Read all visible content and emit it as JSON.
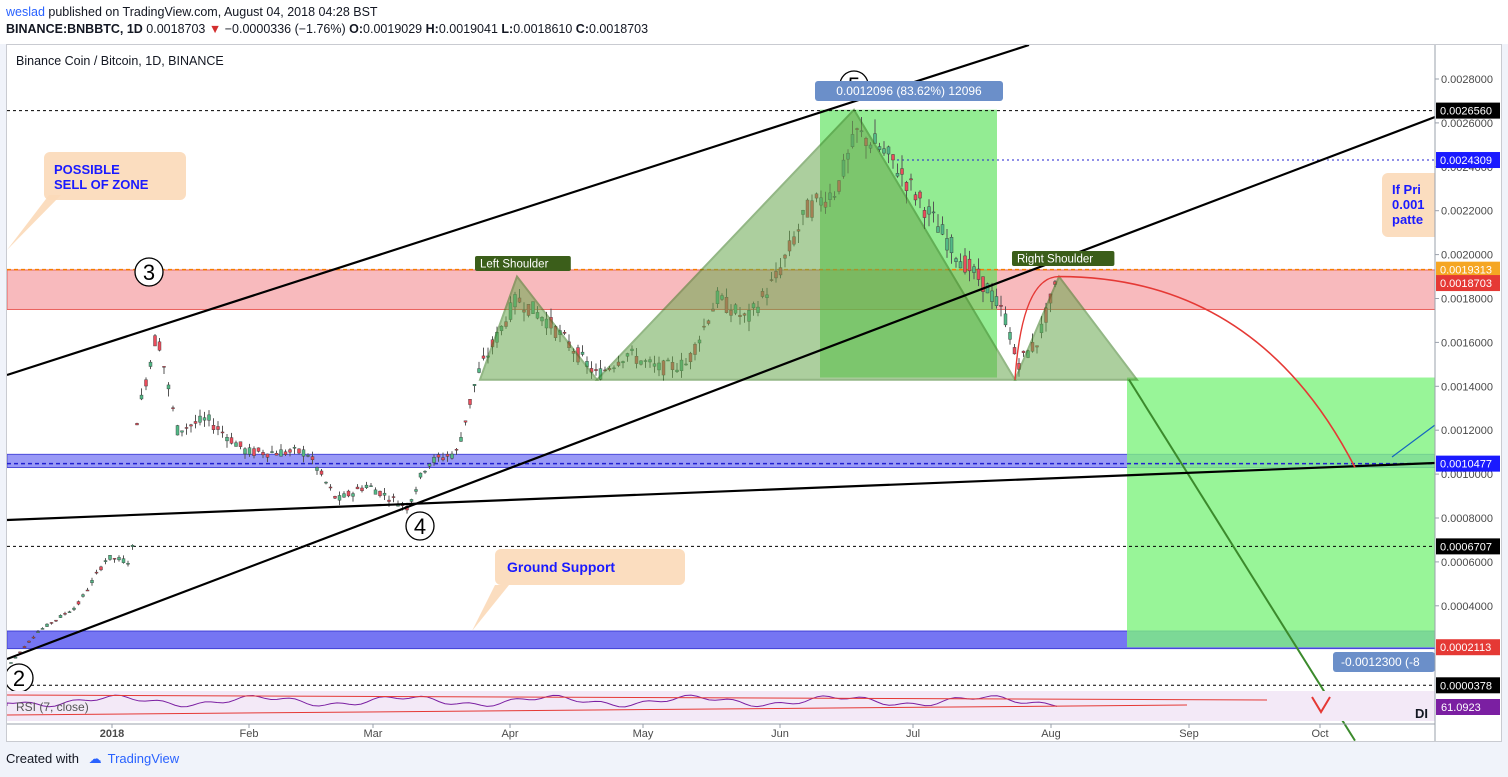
{
  "header": {
    "username": "weslad",
    "published_text": " published on TradingView.com, August 04, 2018 04:28 BST",
    "symbol": "BINANCE:BNBBTC, 1D",
    "last": "0.0018703",
    "change": "−0.0000336 (−1.76%)",
    "o_label": "O:",
    "o": "0.0019029",
    "h_label": "H:",
    "h": "0.0019041",
    "l_label": "L:",
    "l": "0.0018610",
    "c_label": "C:",
    "c": "0.0018703"
  },
  "footer": {
    "created_with": "Created with",
    "brand": "TradingView"
  },
  "chart_data": {
    "type": "candlestick",
    "title": "Binance Coin / Bitcoin, 1D, BINANCE",
    "y_ticks": [
      "0.0028000",
      "0.0026000",
      "0.0024000",
      "0.0022000",
      "0.0020000",
      "0.0018000",
      "0.0016000",
      "0.0014000",
      "0.0012000",
      "0.0010000",
      "0.0008000",
      "0.0006000",
      "0.0004000"
    ],
    "ylim": [
      3.78e-05,
      0.00292
    ],
    "x_ticks": [
      "2018",
      "Feb",
      "Mar",
      "Apr",
      "May",
      "Jun",
      "Jul",
      "Aug",
      "Sep",
      "Oct"
    ],
    "price_labels": [
      {
        "text": "0.0026560",
        "value": 0.002656,
        "style": "black"
      },
      {
        "text": "0.0024309",
        "value": 0.0024309,
        "style": "blue"
      },
      {
        "text": "0.0019313",
        "value": 0.0019313,
        "style": "orange"
      },
      {
        "text": "0.0018703",
        "value": 0.0018703,
        "style": "red"
      },
      {
        "text": "0.0010477",
        "value": 0.0010477,
        "style": "blue"
      },
      {
        "text": "0.0006707",
        "value": 0.0006707,
        "style": "black"
      },
      {
        "text": "0.0002113",
        "value": 0.0002113,
        "style": "red"
      },
      {
        "text": "0.0000378",
        "value": 3.78e-05,
        "style": "black"
      }
    ],
    "annotations": {
      "sell_zone": "POSSIBLE\nSELL OF ZONE",
      "ground_support": "Ground Support",
      "left_shoulder": "Left Shoulder",
      "right_shoulder": "Right Shoulder",
      "measure_top": "0.0012096 (83.62%) 12096",
      "measure_bottom": "-0.0012300 (-8",
      "note_right": "If Pri\n0.001\npatte",
      "waves": [
        "2",
        "3",
        "4",
        "5"
      ]
    },
    "rsi": {
      "label": "RSI (7, close)",
      "value": "61.0923",
      "di_label": "DI"
    },
    "colors": {
      "up": "#53b987",
      "down": "#eb4d5c",
      "zone_red": "#f7a9ad",
      "zone_blue": "#5e5ef2",
      "green_box": "#7ef27e",
      "hs": "#6aa84f"
    }
  }
}
